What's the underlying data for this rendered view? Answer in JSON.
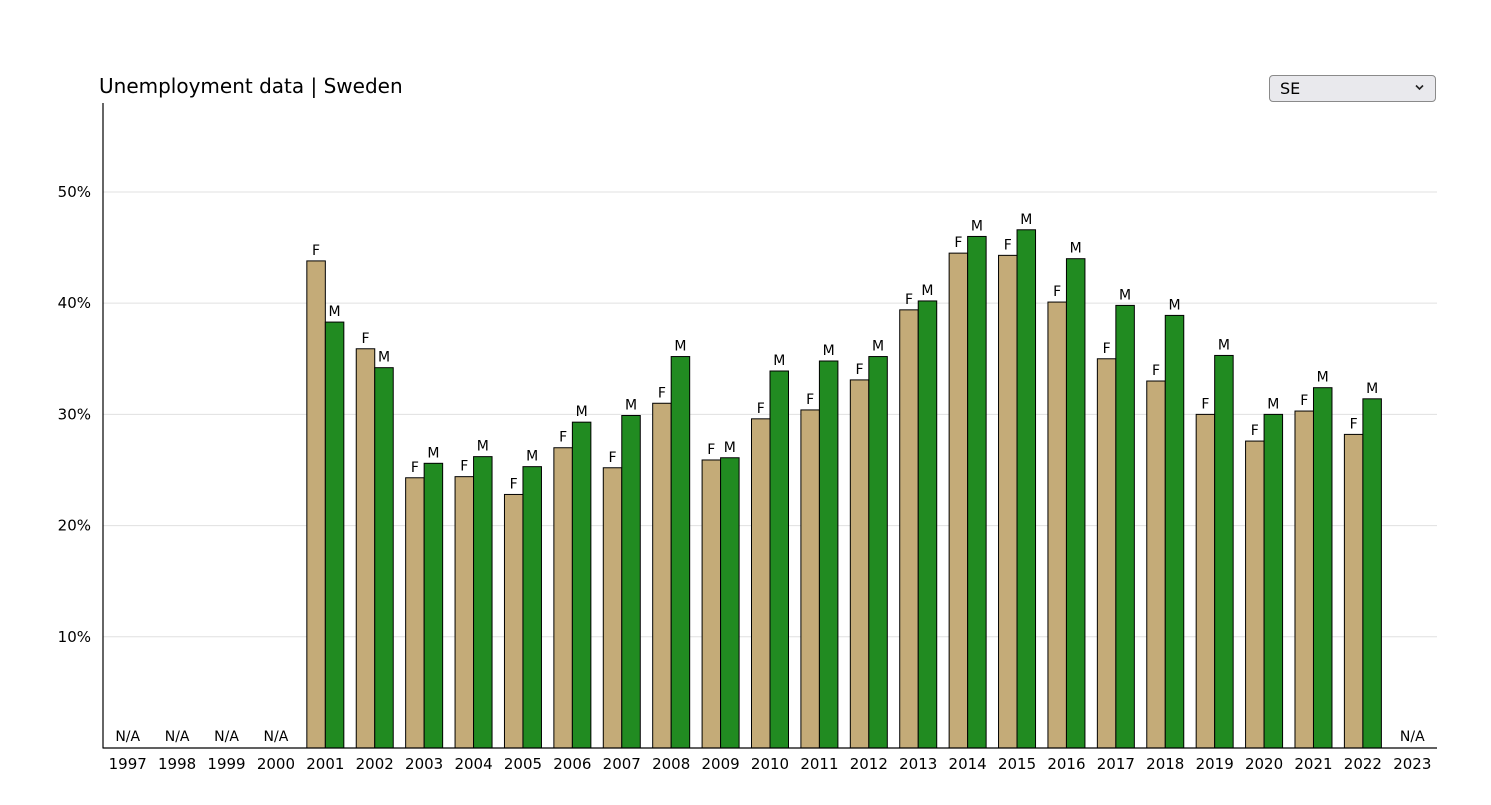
{
  "page": {
    "title": "Unemployment data | Sweden",
    "country_select": {
      "selected": "SE"
    }
  },
  "colors": {
    "female": "#c4ab78",
    "male": "#218b21",
    "grid": "#e0e0e0",
    "axis": "#000000"
  },
  "chart_data": {
    "type": "bar",
    "title": "Unemployment data | Sweden",
    "xlabel": "",
    "ylabel": "",
    "ylim": [
      0,
      58
    ],
    "yticks": [
      10,
      20,
      30,
      40,
      50
    ],
    "ytick_labels": [
      "10%",
      "20%",
      "30%",
      "40%",
      "50%"
    ],
    "grid": true,
    "categories": [
      "1997",
      "1998",
      "1999",
      "2000",
      "2001",
      "2002",
      "2003",
      "2004",
      "2005",
      "2006",
      "2007",
      "2008",
      "2009",
      "2010",
      "2011",
      "2012",
      "2013",
      "2014",
      "2015",
      "2016",
      "2017",
      "2018",
      "2019",
      "2020",
      "2021",
      "2022",
      "2023"
    ],
    "series": [
      {
        "name": "F",
        "values": [
          null,
          null,
          null,
          null,
          43.8,
          35.9,
          24.3,
          24.4,
          22.8,
          27.0,
          25.2,
          31.0,
          25.9,
          29.6,
          30.4,
          33.1,
          39.4,
          44.5,
          44.3,
          40.1,
          35.0,
          33.0,
          30.0,
          27.6,
          30.3,
          28.2,
          null
        ]
      },
      {
        "name": "M",
        "values": [
          null,
          null,
          null,
          null,
          38.3,
          34.2,
          25.6,
          26.2,
          25.3,
          29.3,
          29.9,
          35.2,
          26.1,
          33.9,
          34.8,
          35.2,
          40.2,
          46.0,
          46.6,
          44.0,
          39.8,
          38.9,
          35.3,
          30.0,
          32.4,
          31.4,
          null
        ]
      }
    ],
    "na_label": "N/A"
  }
}
